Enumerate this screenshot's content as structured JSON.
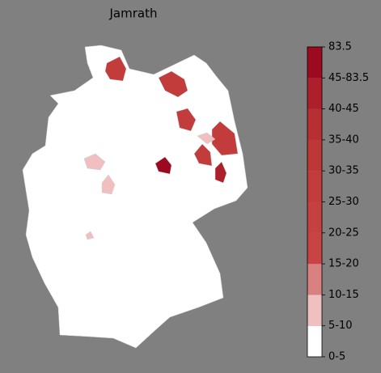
{
  "map": {
    "title": "Jamrath",
    "legend": {
      "labels": [
        "0-5",
        "5-10",
        "10-15",
        "15-20",
        "20-25",
        "25-30",
        "30-35",
        "35-40",
        "40-45",
        "45-83.5",
        "83.5"
      ],
      "colors": [
        "#ffffff",
        "#f0c0c0",
        "#d98080",
        "#c84444",
        "#c54040",
        "#c23c3c",
        "#be3737",
        "#b72e33",
        "#ac1f2b",
        "#9c0a20"
      ]
    }
  }
}
